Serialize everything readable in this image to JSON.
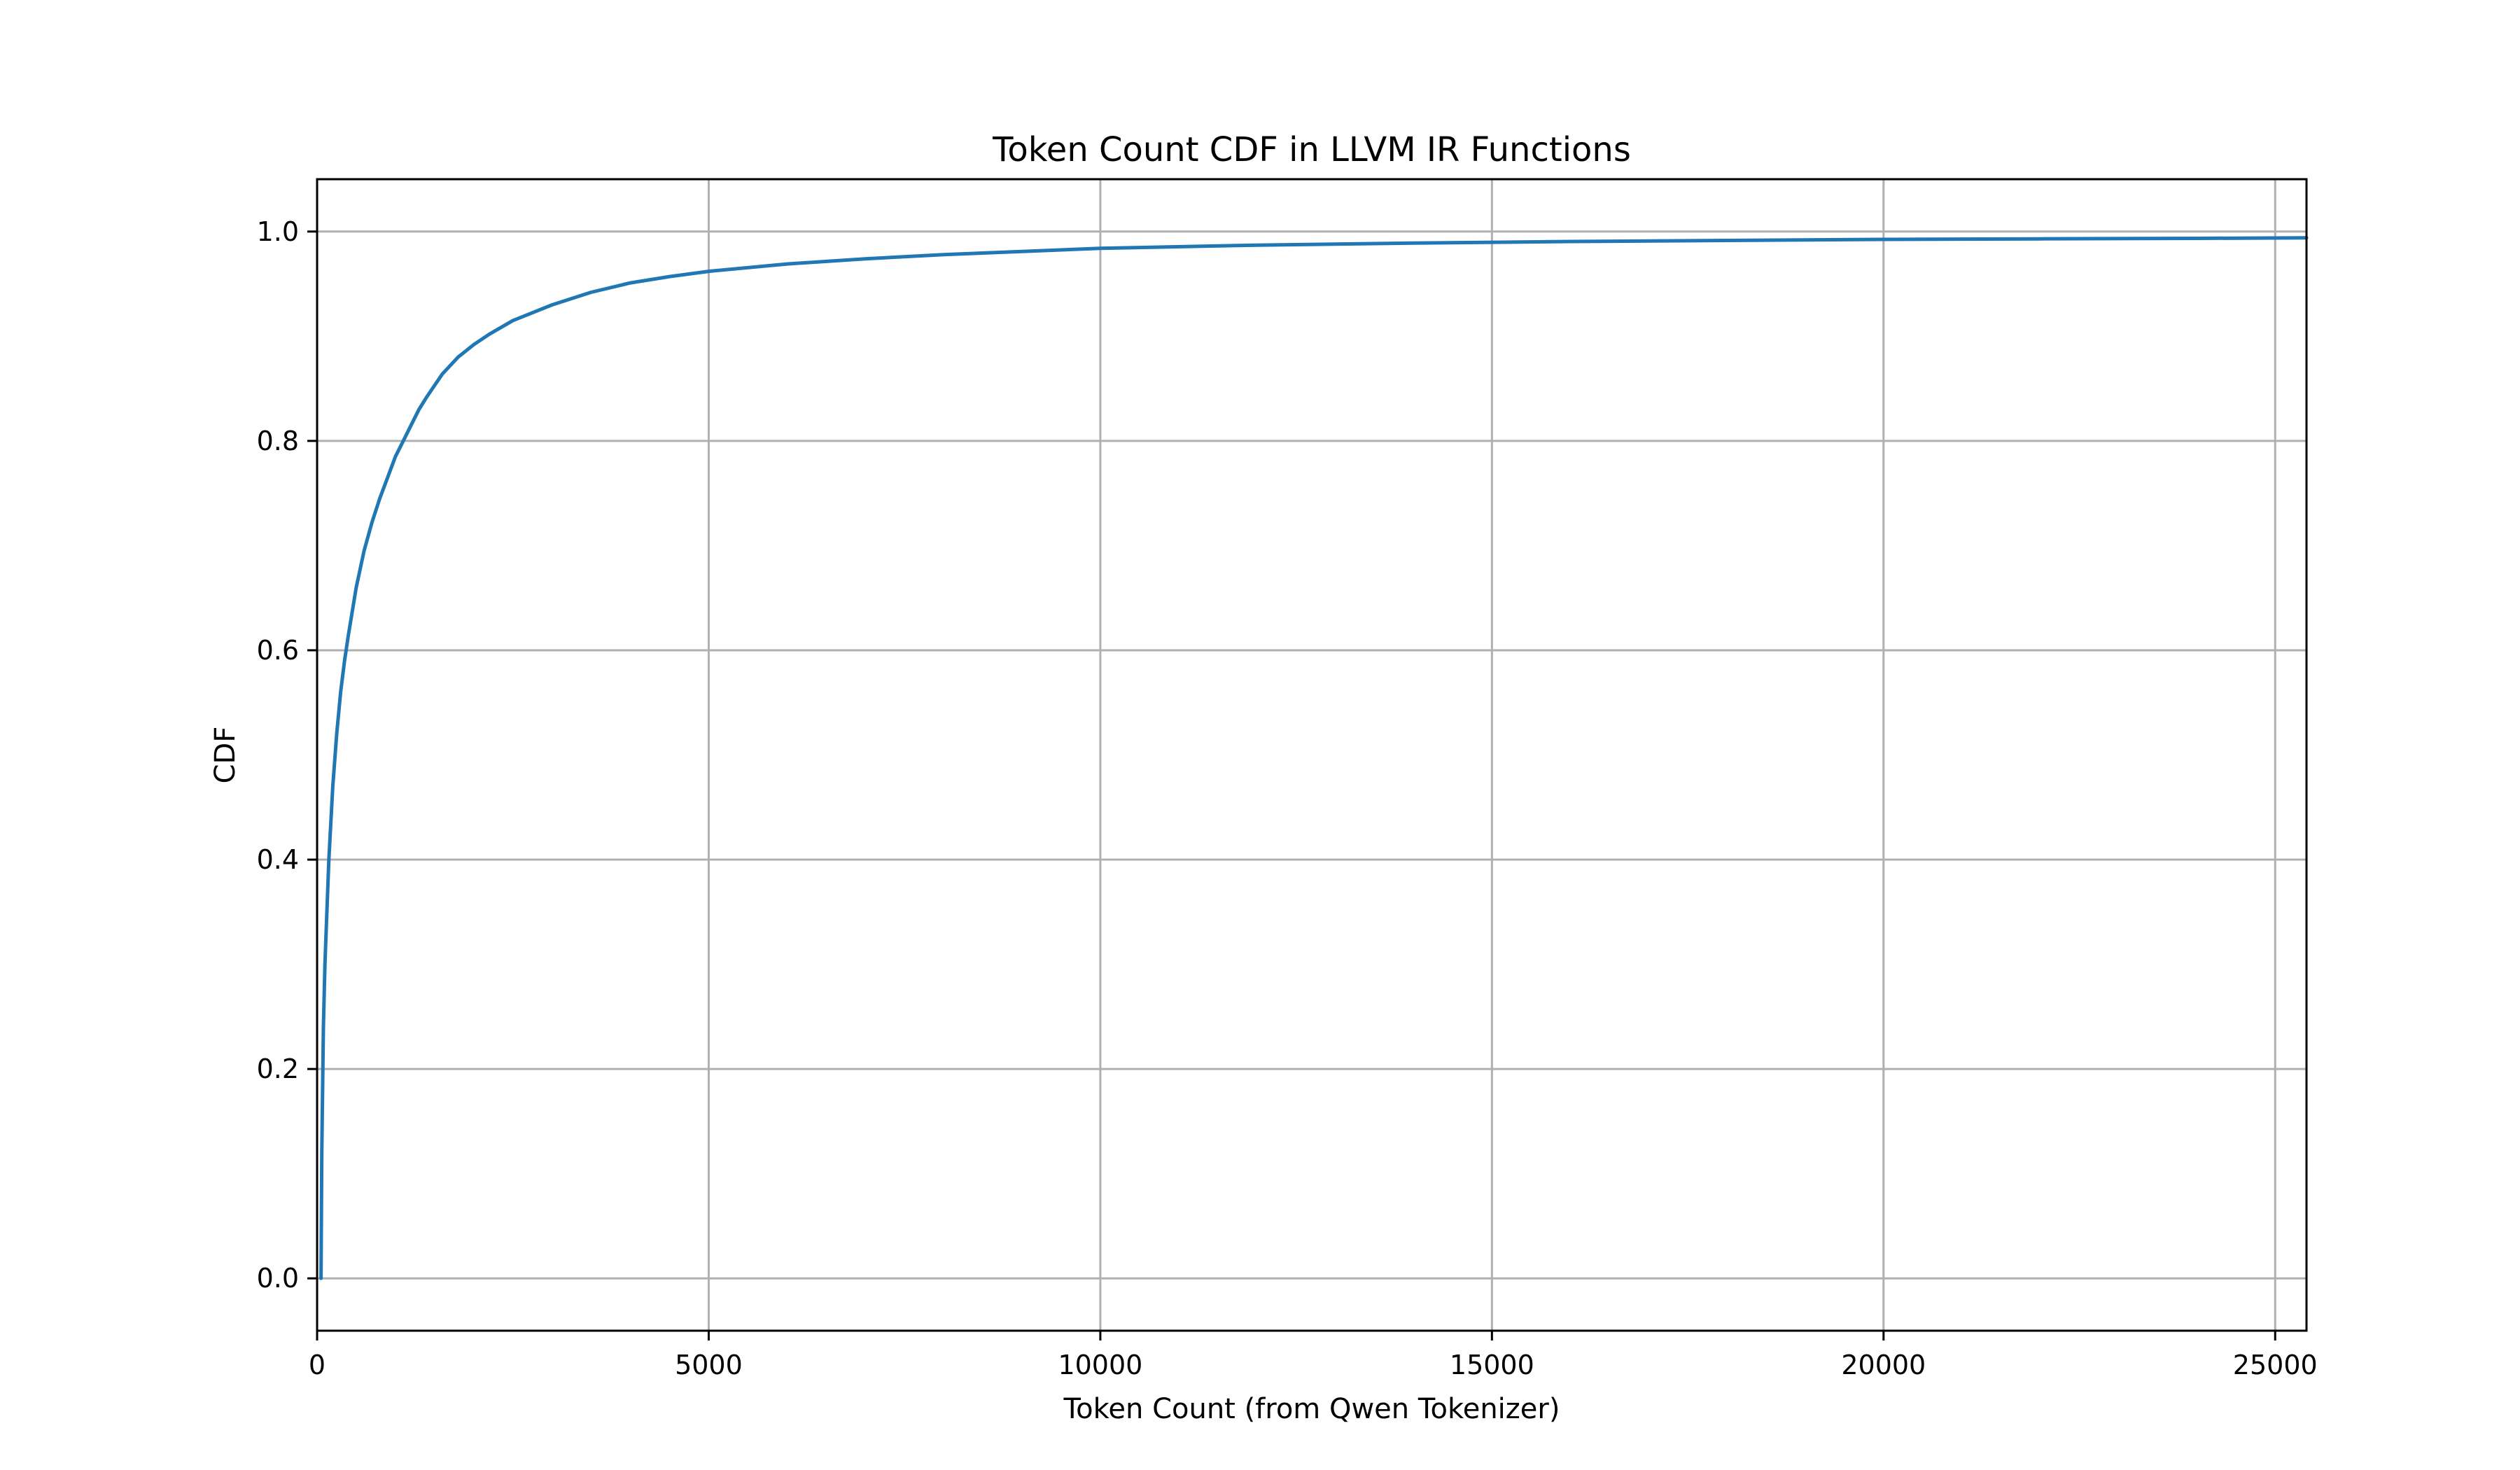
{
  "chart_data": {
    "type": "line",
    "title": "Token Count CDF in LLVM IR Functions",
    "xlabel": "Token Count (from Qwen Tokenizer)",
    "ylabel": "CDF",
    "xlim": [
      0,
      25400
    ],
    "ylim": [
      -0.05,
      1.05
    ],
    "xticks": [
      0,
      5000,
      10000,
      15000,
      20000,
      25000
    ],
    "xtick_labels": [
      "0",
      "5000",
      "10000",
      "15000",
      "20000",
      "25000"
    ],
    "yticks": [
      0.0,
      0.2,
      0.4,
      0.6,
      0.8,
      1.0
    ],
    "ytick_labels": [
      "0.0",
      "0.2",
      "0.4",
      "0.6",
      "0.8",
      "1.0"
    ],
    "grid": true,
    "colors": {
      "line": "#1f77b4",
      "grid": "#b0b0b0",
      "axes": "#000000"
    },
    "series": [
      {
        "x": [
          50,
          60,
          80,
          100,
          120,
          150,
          200,
          250,
          300,
          350,
          400,
          500,
          600,
          700,
          800,
          900,
          1000,
          1100,
          1200,
          1300,
          1400,
          1500,
          1600,
          1800,
          2000,
          2200,
          2500,
          3000,
          3500,
          4000,
          4500,
          5000,
          6000,
          7000,
          8000,
          9000,
          10000,
          12000,
          14000,
          16000,
          18000,
          20000,
          22000,
          24000,
          25400
        ],
        "y": [
          0.0,
          0.12,
          0.24,
          0.3,
          0.34,
          0.4,
          0.47,
          0.52,
          0.56,
          0.59,
          0.615,
          0.66,
          0.695,
          0.722,
          0.745,
          0.765,
          0.785,
          0.8,
          0.815,
          0.83,
          0.842,
          0.853,
          0.864,
          0.88,
          0.892,
          0.902,
          0.915,
          0.93,
          0.942,
          0.951,
          0.957,
          0.962,
          0.969,
          0.974,
          0.978,
          0.981,
          0.984,
          0.987,
          0.989,
          0.9905,
          0.9915,
          0.9925,
          0.993,
          0.9935,
          0.994
        ]
      }
    ]
  }
}
